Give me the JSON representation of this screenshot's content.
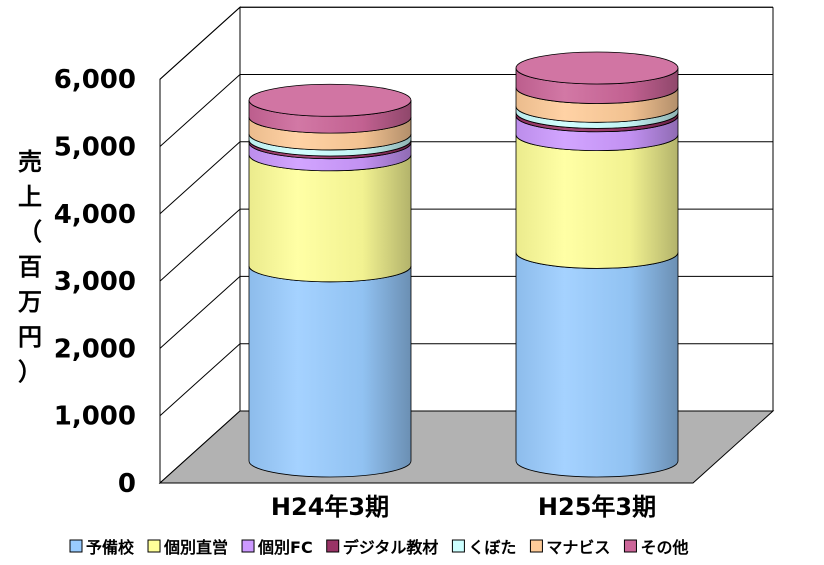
{
  "chart_data": {
    "type": "bar",
    "style": "3d-stacked-cylinder",
    "categories": [
      "H24年3期",
      "H25年3期"
    ],
    "ylabel": "売上（百万円）",
    "ylim": [
      0,
      6000
    ],
    "yticks": [
      0,
      1000,
      2000,
      3000,
      4000,
      5000,
      6000
    ],
    "ytick_labels": [
      "0",
      "1,000",
      "2,000",
      "3,000",
      "4,000",
      "5,000",
      "6,000"
    ],
    "grid": true,
    "legend": "bottom",
    "series": [
      {
        "name": "予備校",
        "color": "#99ccff",
        "values": [
          2900,
          3100
        ]
      },
      {
        "name": "個別直営",
        "color": "#ffff99",
        "values": [
          1650,
          1750
        ]
      },
      {
        "name": "個別FC",
        "color": "#cc99ff",
        "values": [
          180,
          280
        ]
      },
      {
        "name": "デジタル教材",
        "color": "#993366",
        "values": [
          40,
          50
        ]
      },
      {
        "name": "くぼた",
        "color": "#ccffff",
        "values": [
          90,
          90
        ]
      },
      {
        "name": "マナビス",
        "color": "#ffcc99",
        "values": [
          250,
          280
        ]
      },
      {
        "name": "その他",
        "color": "#cc6699",
        "values": [
          250,
          290
        ]
      }
    ]
  }
}
